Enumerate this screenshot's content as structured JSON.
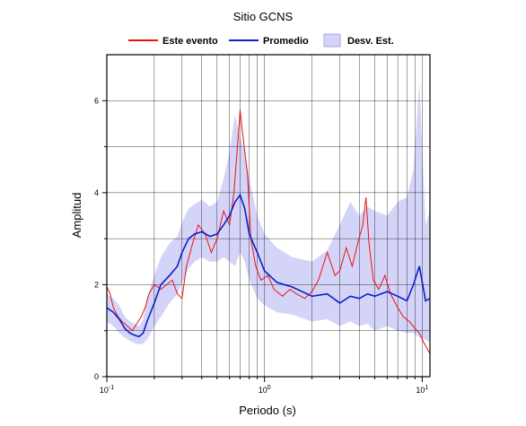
{
  "chart_data": {
    "type": "line",
    "title": "Sitio GCNS",
    "xlabel": "Periodo (s)",
    "ylabel": "Amplitud",
    "xscale": "log",
    "xlim": [
      0.1,
      11.2
    ],
    "ylim": [
      0,
      7
    ],
    "grid": true,
    "legend_position": "top",
    "y_ticks": [
      0,
      2,
      4,
      6
    ],
    "x_tick_labels": [
      {
        "base": "10",
        "exp": "-1",
        "value": 0.1
      },
      {
        "base": "10",
        "exp": "0",
        "value": 1
      },
      {
        "base": "10",
        "exp": "1",
        "value": 10
      }
    ],
    "series": [
      {
        "name": "Este evento",
        "color": "#ee1111",
        "x": [
          0.1,
          0.105,
          0.11,
          0.118,
          0.125,
          0.135,
          0.145,
          0.155,
          0.165,
          0.175,
          0.185,
          0.2,
          0.22,
          0.24,
          0.26,
          0.28,
          0.3,
          0.32,
          0.35,
          0.38,
          0.42,
          0.46,
          0.5,
          0.55,
          0.6,
          0.64,
          0.68,
          0.7,
          0.72,
          0.75,
          0.78,
          0.82,
          0.88,
          0.95,
          1.05,
          1.15,
          1.3,
          1.45,
          1.6,
          1.8,
          2.0,
          2.2,
          2.5,
          2.8,
          3.0,
          3.3,
          3.6,
          3.9,
          4.2,
          4.4,
          4.6,
          4.9,
          5.3,
          5.8,
          6.3,
          7.0,
          7.6,
          8.3,
          9.0,
          9.6,
          10.2,
          10.8,
          11.2
        ],
        "y": [
          1.95,
          1.8,
          1.5,
          1.3,
          1.2,
          1.1,
          1.0,
          1.15,
          1.3,
          1.5,
          1.8,
          2.0,
          1.9,
          2.0,
          2.1,
          1.8,
          1.7,
          2.4,
          2.9,
          3.3,
          3.1,
          2.7,
          3.0,
          3.6,
          3.3,
          4.0,
          5.2,
          5.8,
          5.4,
          4.9,
          4.4,
          3.0,
          2.4,
          2.1,
          2.2,
          1.9,
          1.75,
          1.9,
          1.8,
          1.7,
          1.85,
          2.1,
          2.7,
          2.2,
          2.3,
          2.8,
          2.4,
          2.9,
          3.3,
          3.9,
          2.9,
          2.1,
          1.9,
          2.2,
          1.8,
          1.5,
          1.3,
          1.2,
          1.05,
          0.95,
          0.75,
          0.6,
          0.5
        ]
      },
      {
        "name": "Promedio",
        "color": "#0a1ecc",
        "x": [
          0.1,
          0.11,
          0.12,
          0.13,
          0.14,
          0.15,
          0.16,
          0.17,
          0.18,
          0.2,
          0.22,
          0.25,
          0.28,
          0.3,
          0.33,
          0.36,
          0.4,
          0.45,
          0.5,
          0.55,
          0.6,
          0.65,
          0.7,
          0.75,
          0.8,
          0.9,
          1.0,
          1.2,
          1.5,
          2.0,
          2.5,
          3.0,
          3.5,
          4.0,
          4.5,
          5.0,
          6.0,
          7.0,
          8.0,
          8.8,
          9.6,
          10.5,
          11.2
        ],
        "y": [
          1.5,
          1.4,
          1.25,
          1.05,
          0.95,
          0.9,
          0.87,
          0.95,
          1.2,
          1.6,
          2.0,
          2.2,
          2.4,
          2.7,
          3.0,
          3.1,
          3.15,
          3.05,
          3.1,
          3.3,
          3.5,
          3.8,
          3.95,
          3.65,
          3.1,
          2.7,
          2.3,
          2.05,
          1.95,
          1.75,
          1.8,
          1.6,
          1.75,
          1.7,
          1.8,
          1.75,
          1.85,
          1.75,
          1.65,
          2.0,
          2.4,
          1.65,
          1.7
        ]
      }
    ],
    "band": {
      "name": "Desv. Est.",
      "color": "#d4d4f8",
      "x": [
        0.1,
        0.11,
        0.12,
        0.13,
        0.14,
        0.15,
        0.16,
        0.17,
        0.18,
        0.2,
        0.22,
        0.25,
        0.28,
        0.3,
        0.33,
        0.36,
        0.4,
        0.45,
        0.5,
        0.55,
        0.6,
        0.65,
        0.7,
        0.75,
        0.8,
        0.9,
        1.0,
        1.2,
        1.5,
        2.0,
        2.5,
        3.0,
        3.5,
        4.0,
        4.5,
        5.0,
        6.0,
        7.0,
        8.0,
        8.8,
        9.6,
        10.5,
        11.2
      ],
      "upper": [
        1.8,
        1.7,
        1.55,
        1.3,
        1.2,
        1.15,
        1.1,
        1.25,
        1.7,
        2.2,
        2.6,
        2.9,
        3.05,
        3.35,
        3.65,
        3.75,
        3.85,
        3.7,
        3.8,
        4.3,
        4.9,
        5.7,
        5.2,
        4.9,
        4.3,
        3.5,
        3.1,
        2.8,
        2.6,
        2.5,
        2.75,
        3.3,
        3.8,
        3.5,
        3.7,
        3.6,
        3.5,
        3.8,
        3.9,
        4.5,
        6.4,
        3.3,
        3.6
      ],
      "lower": [
        1.2,
        1.1,
        0.95,
        0.85,
        0.78,
        0.73,
        0.7,
        0.72,
        0.8,
        1.1,
        1.3,
        1.6,
        1.8,
        2.05,
        2.35,
        2.5,
        2.6,
        2.5,
        2.5,
        2.6,
        2.5,
        2.4,
        2.7,
        2.5,
        2.1,
        1.7,
        1.55,
        1.4,
        1.35,
        1.2,
        1.25,
        1.1,
        1.2,
        1.1,
        1.15,
        1.0,
        1.1,
        1.0,
        0.95,
        0.95,
        0.85,
        0.8,
        0.75
      ]
    }
  }
}
